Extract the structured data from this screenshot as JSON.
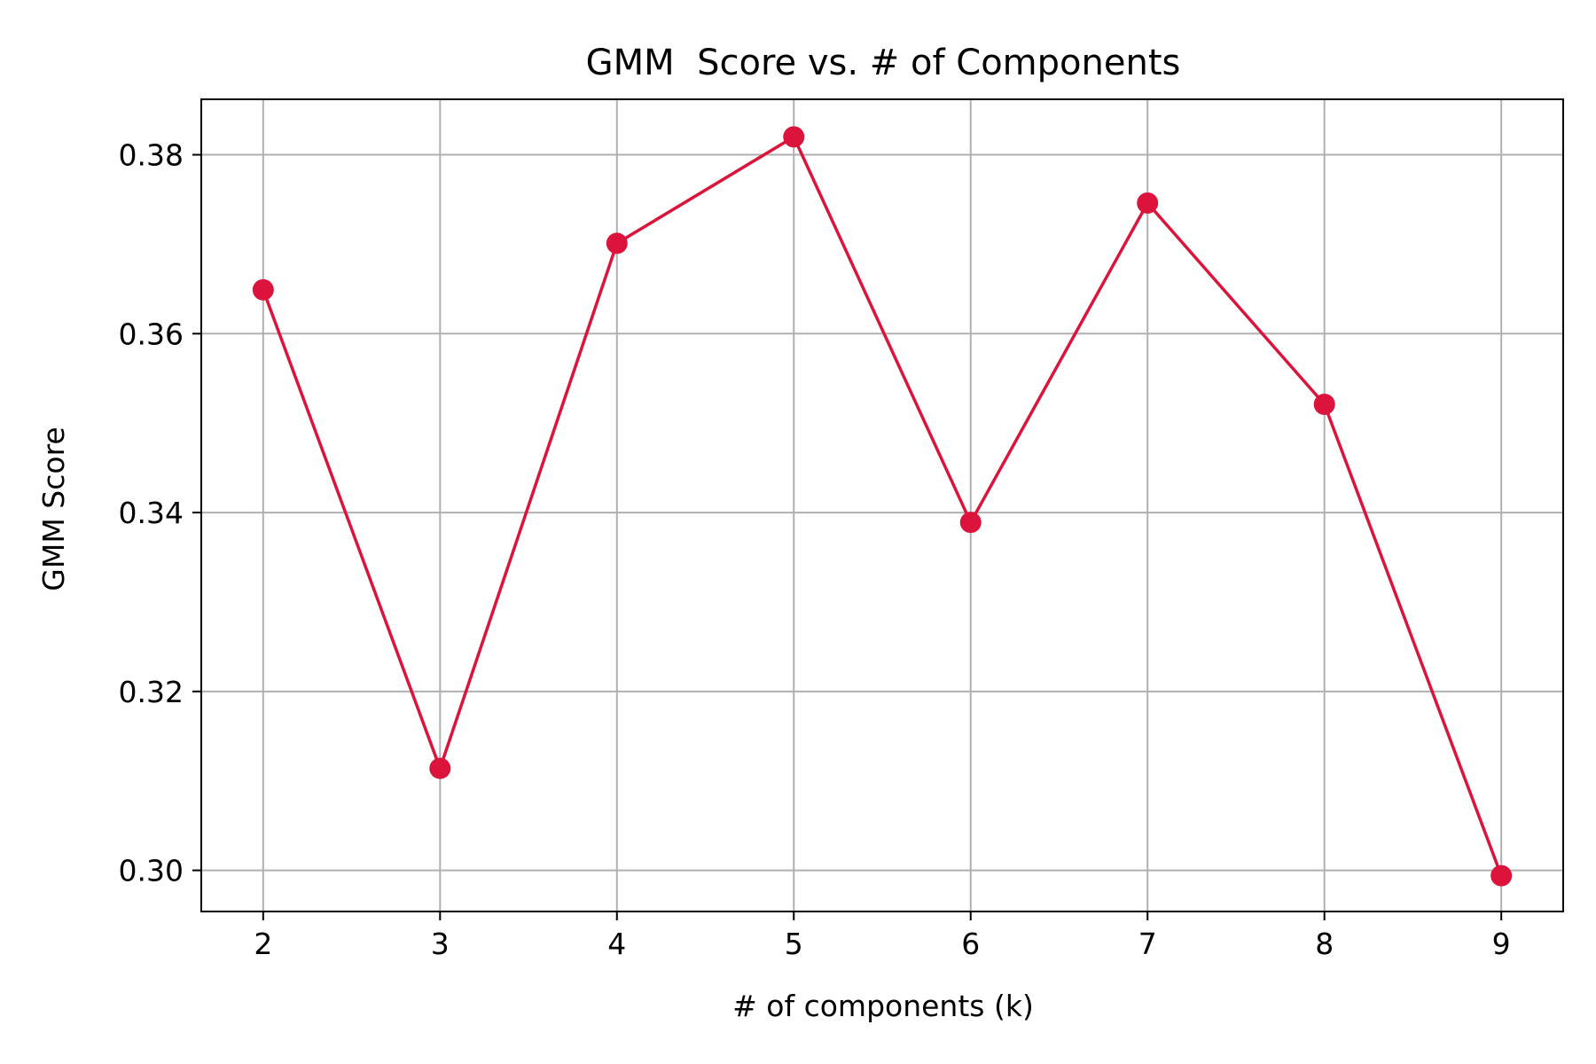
{
  "chart_data": {
    "type": "line",
    "title": "GMM  Score vs. # of Components",
    "xlabel": "# of components (k)",
    "ylabel": "GMM Score",
    "x": [
      2,
      3,
      4,
      5,
      6,
      7,
      8,
      9
    ],
    "series": [
      {
        "values": [
          0.3649,
          0.3114,
          0.3701,
          0.382,
          0.3389,
          0.3746,
          0.3521,
          0.2994
        ],
        "color": "#dc143c",
        "marker": "circle"
      }
    ],
    "xticks": [
      "2",
      "3",
      "4",
      "5",
      "6",
      "7",
      "8",
      "9"
    ],
    "yticks": [
      "0.30",
      "0.32",
      "0.34",
      "0.36",
      "0.38"
    ],
    "ytick_values": [
      0.3,
      0.32,
      0.34,
      0.36,
      0.38
    ],
    "xlim": [
      1.65,
      9.35
    ],
    "ylim": [
      0.2954,
      0.3862
    ],
    "grid": true,
    "legend": "none",
    "grid_color": "#b0b0b0",
    "axis_color": "#000000"
  }
}
